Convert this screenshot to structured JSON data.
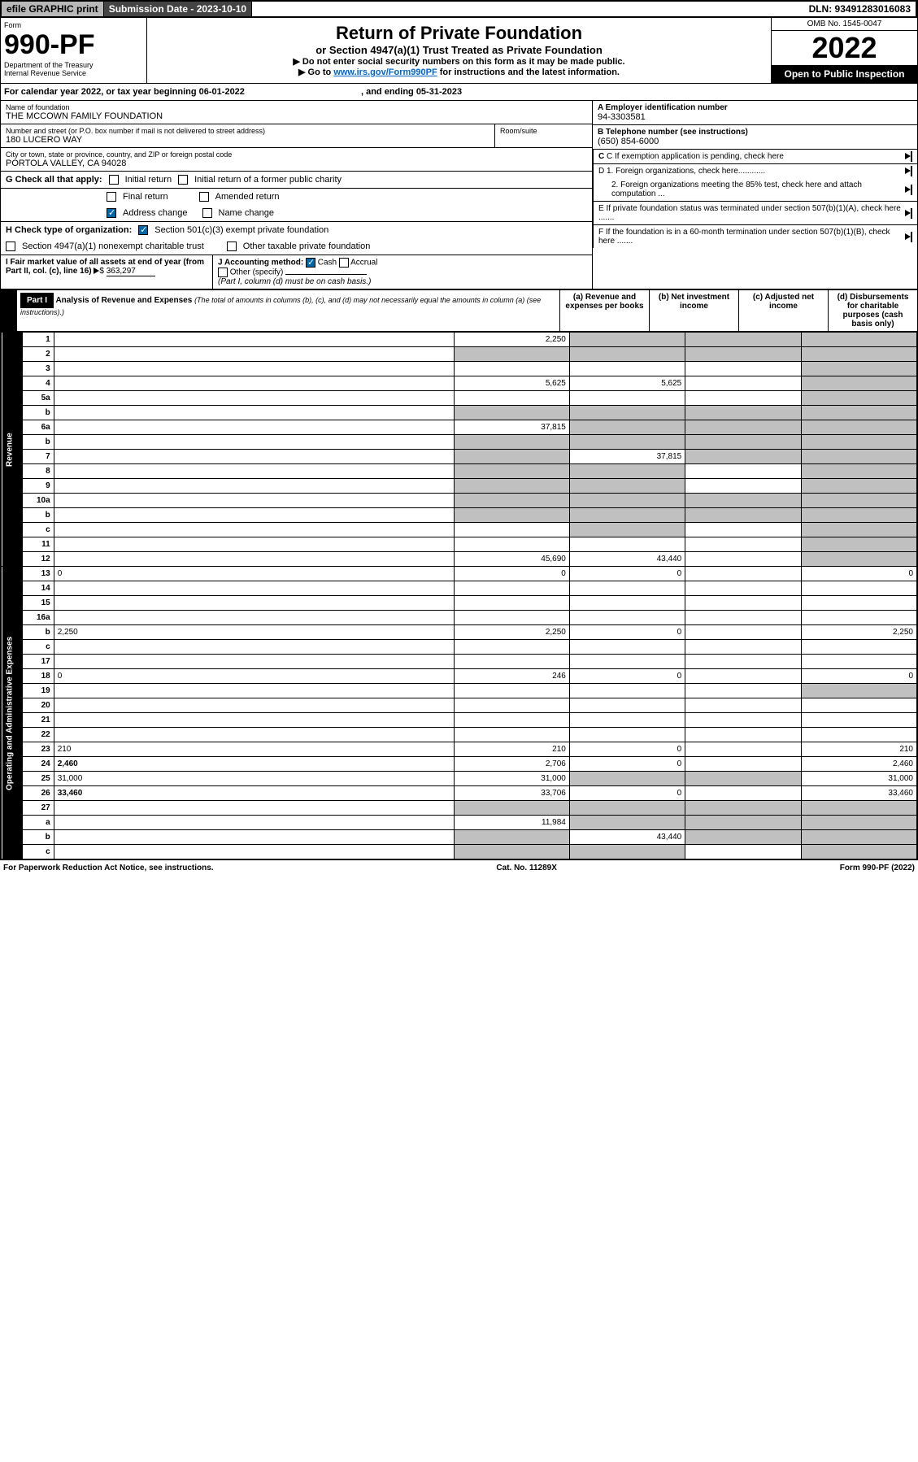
{
  "topbar": {
    "efile": "efile GRAPHIC print",
    "submission": "Submission Date - 2023-10-10",
    "dln": "DLN: 93491283016083"
  },
  "header": {
    "form_label": "Form",
    "form_number": "990-PF",
    "dept": "Department of the Treasury",
    "irs": "Internal Revenue Service",
    "title": "Return of Private Foundation",
    "subtitle": "or Section 4947(a)(1) Trust Treated as Private Foundation",
    "instr1": "▶ Do not enter social security numbers on this form as it may be made public.",
    "instr2_pre": "▶ Go to ",
    "instr2_link": "www.irs.gov/Form990PF",
    "instr2_post": " for instructions and the latest information.",
    "omb": "OMB No. 1545-0047",
    "year": "2022",
    "open": "Open to Public Inspection"
  },
  "calyear": {
    "text": "For calendar year 2022, or tax year beginning 06-01-2022",
    "ending": ", and ending 05-31-2023"
  },
  "entity": {
    "name_label": "Name of foundation",
    "name": "THE MCCOWN FAMILY FOUNDATION",
    "addr_label": "Number and street (or P.O. box number if mail is not delivered to street address)",
    "addr": "180 LUCERO WAY",
    "room_label": "Room/suite",
    "city_label": "City or town, state or province, country, and ZIP or foreign postal code",
    "city": "PORTOLA VALLEY, CA  94028",
    "ein_label": "A Employer identification number",
    "ein": "94-3303581",
    "phone_label": "B Telephone number (see instructions)",
    "phone": "(650) 854-6000",
    "c_label": "C If exemption application is pending, check here",
    "d1": "D 1. Foreign organizations, check here............",
    "d2": "2. Foreign organizations meeting the 85% test, check here and attach computation ...",
    "e": "E  If private foundation status was terminated under section 507(b)(1)(A), check here .......",
    "f": "F  If the foundation is in a 60-month termination under section 507(b)(1)(B), check here .......",
    "g_label": "G Check all that apply:",
    "g_initial": "Initial return",
    "g_initial_former": "Initial return of a former public charity",
    "g_final": "Final return",
    "g_amended": "Amended return",
    "g_address": "Address change",
    "g_name": "Name change",
    "h_label": "H Check type of organization:",
    "h_501c3": "Section 501(c)(3) exempt private foundation",
    "h_4947": "Section 4947(a)(1) nonexempt charitable trust",
    "h_other": "Other taxable private foundation",
    "i_label": "I Fair market value of all assets at end of year (from Part II, col. (c), line 16)",
    "i_value": "363,297",
    "j_label": "J Accounting method:",
    "j_cash": "Cash",
    "j_accrual": "Accrual",
    "j_other": "Other (specify)",
    "j_note": "(Part I, column (d) must be on cash basis.)"
  },
  "part1": {
    "label": "Part I",
    "title": "Analysis of Revenue and Expenses",
    "note": "(The total of amounts in columns (b), (c), and (d) may not necessarily equal the amounts in column (a) (see instructions).)",
    "col_a": "(a)   Revenue and expenses per books",
    "col_b": "(b)   Net investment income",
    "col_c": "(c)   Adjusted net income",
    "col_d": "(d)   Disbursements for charitable purposes (cash basis only)",
    "revenue_label": "Revenue",
    "expenses_label": "Operating and Administrative Expenses"
  },
  "rows": [
    {
      "n": "1",
      "d": "",
      "a": "2,250",
      "b": "",
      "c": "",
      "sb": true,
      "sc": true,
      "sd": true
    },
    {
      "n": "2",
      "d": "",
      "a": "",
      "b": "",
      "c": "",
      "sa": true,
      "sb": true,
      "sc": true,
      "sd": true
    },
    {
      "n": "3",
      "d": "",
      "a": "",
      "b": "",
      "c": "",
      "sd": true
    },
    {
      "n": "4",
      "d": "",
      "a": "5,625",
      "b": "5,625",
      "c": "",
      "sd": true
    },
    {
      "n": "5a",
      "d": "",
      "a": "",
      "b": "",
      "c": "",
      "sd": true
    },
    {
      "n": "b",
      "d": "",
      "a": "",
      "b": "",
      "c": "",
      "sa": true,
      "sb": true,
      "sc": true,
      "sd": true
    },
    {
      "n": "6a",
      "d": "",
      "a": "37,815",
      "b": "",
      "c": "",
      "sb": true,
      "sc": true,
      "sd": true
    },
    {
      "n": "b",
      "d": "",
      "a": "",
      "b": "",
      "c": "",
      "sa": true,
      "sb": true,
      "sc": true,
      "sd": true
    },
    {
      "n": "7",
      "d": "",
      "a": "",
      "b": "37,815",
      "c": "",
      "sa": true,
      "sc": true,
      "sd": true
    },
    {
      "n": "8",
      "d": "",
      "a": "",
      "b": "",
      "c": "",
      "sa": true,
      "sb": true,
      "sd": true
    },
    {
      "n": "9",
      "d": "",
      "a": "",
      "b": "",
      "c": "",
      "sa": true,
      "sb": true,
      "sd": true
    },
    {
      "n": "10a",
      "d": "",
      "a": "",
      "b": "",
      "c": "",
      "sa": true,
      "sb": true,
      "sc": true,
      "sd": true
    },
    {
      "n": "b",
      "d": "",
      "a": "",
      "b": "",
      "c": "",
      "sa": true,
      "sb": true,
      "sc": true,
      "sd": true
    },
    {
      "n": "c",
      "d": "",
      "a": "",
      "b": "",
      "c": "",
      "sb": true,
      "sd": true
    },
    {
      "n": "11",
      "d": "",
      "a": "",
      "b": "",
      "c": "",
      "sd": true
    },
    {
      "n": "12",
      "d": "",
      "a": "45,690",
      "b": "43,440",
      "c": "",
      "bold": true,
      "sd": true
    },
    {
      "n": "13",
      "d": "0",
      "a": "0",
      "b": "0",
      "c": "",
      "group": "exp"
    },
    {
      "n": "14",
      "d": "",
      "a": "",
      "b": "",
      "c": "",
      "group": "exp"
    },
    {
      "n": "15",
      "d": "",
      "a": "",
      "b": "",
      "c": "",
      "group": "exp"
    },
    {
      "n": "16a",
      "d": "",
      "a": "",
      "b": "",
      "c": "",
      "group": "exp"
    },
    {
      "n": "b",
      "d": "2,250",
      "a": "2,250",
      "b": "0",
      "c": "",
      "group": "exp"
    },
    {
      "n": "c",
      "d": "",
      "a": "",
      "b": "",
      "c": "",
      "group": "exp"
    },
    {
      "n": "17",
      "d": "",
      "a": "",
      "b": "",
      "c": "",
      "group": "exp"
    },
    {
      "n": "18",
      "d": "0",
      "a": "246",
      "b": "0",
      "c": "",
      "group": "exp"
    },
    {
      "n": "19",
      "d": "",
      "a": "",
      "b": "",
      "c": "",
      "group": "exp",
      "sd": true
    },
    {
      "n": "20",
      "d": "",
      "a": "",
      "b": "",
      "c": "",
      "group": "exp"
    },
    {
      "n": "21",
      "d": "",
      "a": "",
      "b": "",
      "c": "",
      "group": "exp"
    },
    {
      "n": "22",
      "d": "",
      "a": "",
      "b": "",
      "c": "",
      "group": "exp"
    },
    {
      "n": "23",
      "d": "210",
      "a": "210",
      "b": "0",
      "c": "",
      "group": "exp"
    },
    {
      "n": "24",
      "d": "2,460",
      "a": "2,706",
      "b": "0",
      "c": "",
      "bold": true,
      "group": "exp"
    },
    {
      "n": "25",
      "d": "31,000",
      "a": "31,000",
      "b": "",
      "c": "",
      "group": "exp",
      "sb": true,
      "sc": true
    },
    {
      "n": "26",
      "d": "33,460",
      "a": "33,706",
      "b": "0",
      "c": "",
      "bold": true,
      "group": "exp"
    },
    {
      "n": "27",
      "d": "",
      "a": "",
      "b": "",
      "c": "",
      "sa": true,
      "sb": true,
      "sc": true,
      "sd": true,
      "group": "none"
    },
    {
      "n": "a",
      "d": "",
      "a": "11,984",
      "b": "",
      "c": "",
      "bold": true,
      "group": "none",
      "sb": true,
      "sc": true,
      "sd": true
    },
    {
      "n": "b",
      "d": "",
      "a": "",
      "b": "43,440",
      "c": "",
      "bold": true,
      "group": "none",
      "sa": true,
      "sc": true,
      "sd": true
    },
    {
      "n": "c",
      "d": "",
      "a": "",
      "b": "",
      "c": "",
      "bold": true,
      "group": "none",
      "sa": true,
      "sb": true,
      "sd": true
    }
  ],
  "footer": {
    "left": "For Paperwork Reduction Act Notice, see instructions.",
    "mid": "Cat. No. 11289X",
    "right": "Form 990-PF (2022)"
  }
}
